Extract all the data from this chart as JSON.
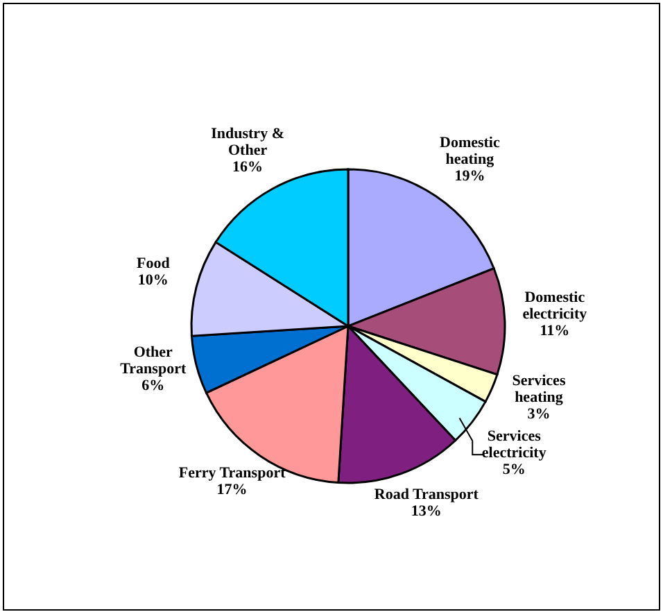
{
  "chart_data": {
    "type": "pie",
    "categories": [
      "Domestic heating",
      "Domestic electricity",
      "Services heating",
      "Services electricity",
      "Road Transport",
      "Ferry Transport",
      "Other Transport",
      "Food",
      "Industry & Other"
    ],
    "values": [
      19,
      11,
      3,
      5,
      13,
      17,
      6,
      10,
      16
    ],
    "value_labels": [
      "19%",
      "11%",
      "3%",
      "5%",
      "13%",
      "17%",
      "6%",
      "10%",
      "16%"
    ],
    "colors": [
      "#aaaaff",
      "#a64d79",
      "#ffffcc",
      "#ccffff",
      "#7f1f7f",
      "#ff9999",
      "#0070d0",
      "#ccccff",
      "#00ccff"
    ]
  }
}
